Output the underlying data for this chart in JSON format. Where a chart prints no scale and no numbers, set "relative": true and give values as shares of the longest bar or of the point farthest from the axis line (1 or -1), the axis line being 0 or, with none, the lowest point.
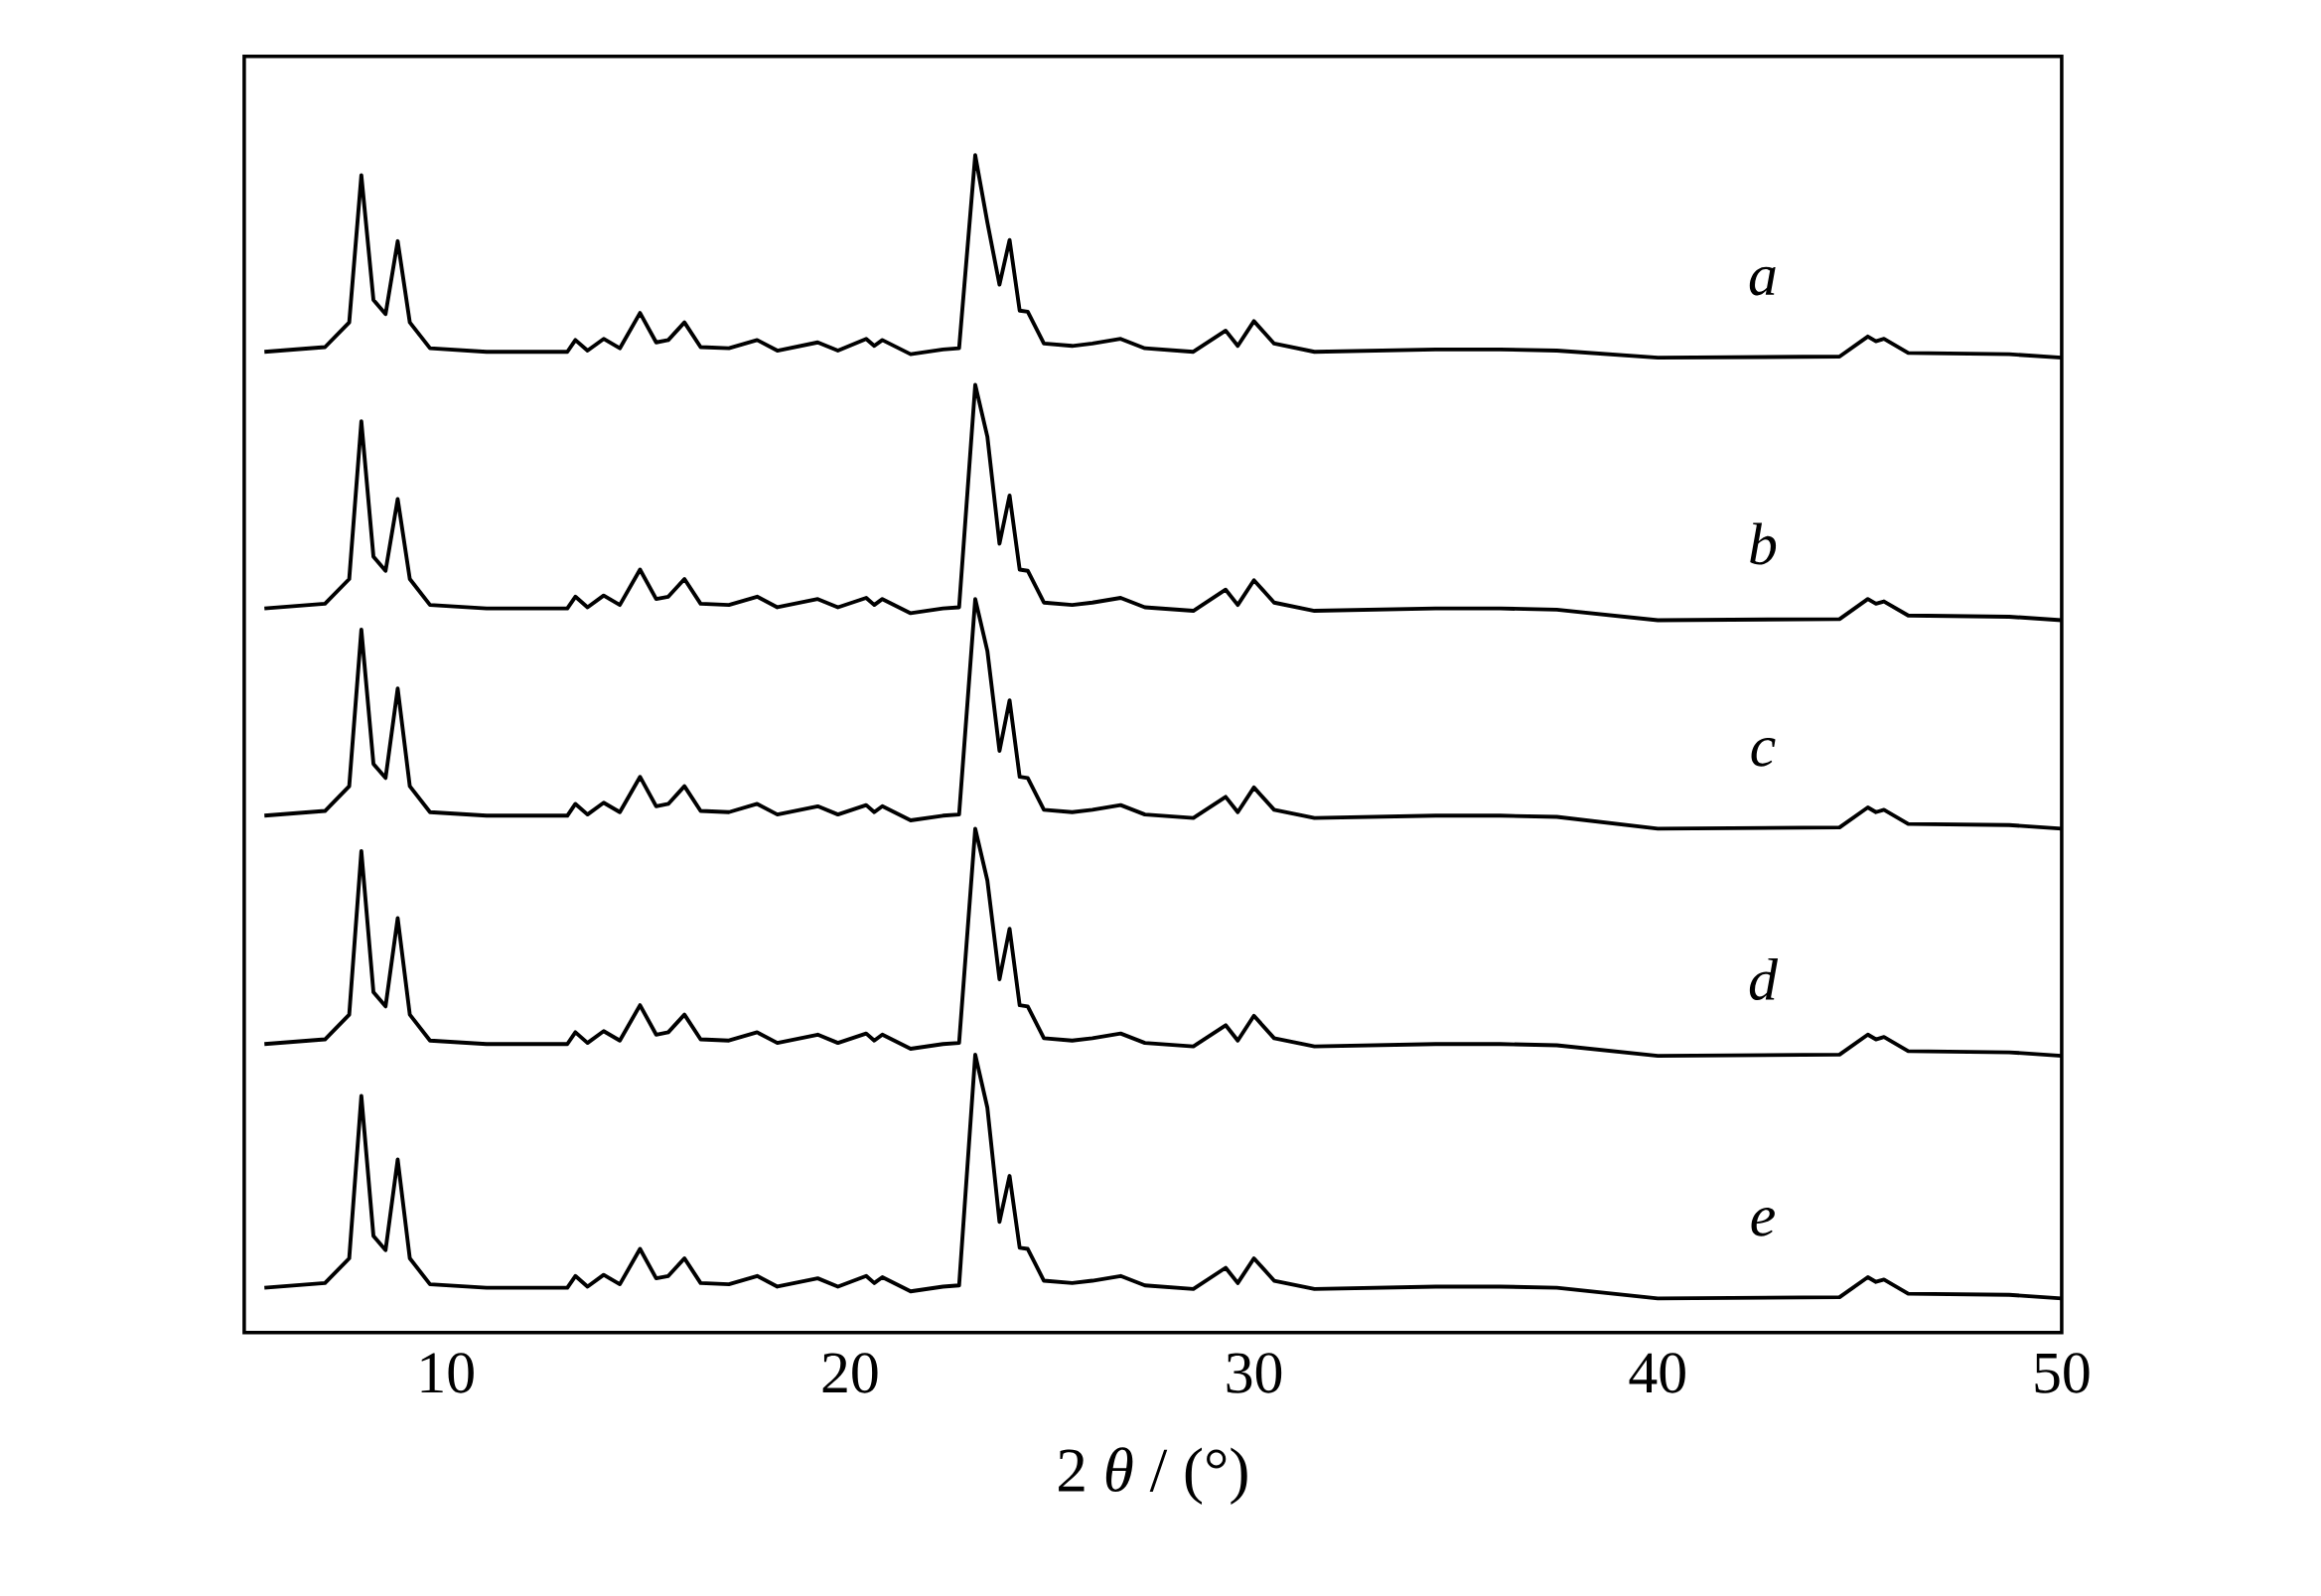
{
  "chart_data": {
    "type": "line",
    "relative": true,
    "xlabel": "2 *θ* / (°)",
    "xlim": [
      5,
      50
    ],
    "xticks": [
      10,
      20,
      30,
      40,
      50
    ],
    "x": [
      5.5,
      7.0,
      7.6,
      7.9,
      8.2,
      8.5,
      8.8,
      9.1,
      9.6,
      11,
      12,
      13.0,
      13.2,
      13.5,
      13.9,
      14.3,
      14.8,
      15.2,
      15.5,
      15.9,
      16.3,
      17.0,
      17.7,
      18.2,
      19.2,
      19.7,
      20.4,
      20.6,
      20.8,
      21.5,
      22.3,
      22.7,
      23.1,
      23.4,
      23.7,
      23.95,
      24.2,
      24.4,
      24.8,
      25.5,
      26.0,
      26.7,
      27.3,
      28.5,
      29.3,
      29.6,
      30.0,
      30.5,
      31.5,
      34.5,
      36.1,
      37.5,
      40,
      44.5,
      45.2,
      45.4,
      45.6,
      46.2,
      48.7,
      50
    ],
    "series": [
      {
        "name": "a",
        "color": "#000000",
        "values": [
          0.833,
          0.837,
          0.858,
          0.983,
          0.877,
          0.865,
          0.927,
          0.858,
          0.836,
          0.833,
          0.833,
          0.833,
          0.843,
          0.834,
          0.844,
          0.836,
          0.866,
          0.841,
          0.843,
          0.858,
          0.837,
          0.836,
          0.843,
          0.834,
          0.841,
          0.834,
          0.844,
          0.838,
          0.843,
          0.831,
          0.835,
          0.836,
          1.0,
          0.943,
          0.89,
          0.928,
          0.868,
          0.867,
          0.84,
          0.838,
          0.84,
          0.844,
          0.836,
          0.833,
          0.851,
          0.838,
          0.859,
          0.84,
          0.833,
          0.835,
          0.835,
          0.834,
          0.828,
          0.829,
          0.846,
          0.842,
          0.844,
          0.832,
          0.831,
          0.828
        ]
      },
      {
        "name": "b",
        "color": "#000000",
        "values": [
          0.615,
          0.619,
          0.64,
          0.774,
          0.659,
          0.647,
          0.708,
          0.64,
          0.618,
          0.615,
          0.615,
          0.615,
          0.625,
          0.616,
          0.626,
          0.618,
          0.648,
          0.623,
          0.625,
          0.64,
          0.619,
          0.618,
          0.625,
          0.616,
          0.623,
          0.616,
          0.624,
          0.618,
          0.623,
          0.611,
          0.615,
          0.616,
          0.805,
          0.761,
          0.67,
          0.711,
          0.648,
          0.647,
          0.62,
          0.618,
          0.62,
          0.624,
          0.616,
          0.613,
          0.631,
          0.618,
          0.639,
          0.62,
          0.613,
          0.615,
          0.615,
          0.614,
          0.605,
          0.606,
          0.623,
          0.619,
          0.621,
          0.609,
          0.608,
          0.605
        ]
      },
      {
        "name": "c",
        "color": "#000000",
        "values": [
          0.439,
          0.443,
          0.464,
          0.597,
          0.483,
          0.471,
          0.547,
          0.464,
          0.442,
          0.439,
          0.439,
          0.439,
          0.449,
          0.44,
          0.45,
          0.442,
          0.472,
          0.447,
          0.449,
          0.464,
          0.443,
          0.442,
          0.449,
          0.44,
          0.447,
          0.44,
          0.448,
          0.442,
          0.447,
          0.435,
          0.439,
          0.44,
          0.623,
          0.579,
          0.494,
          0.537,
          0.472,
          0.471,
          0.444,
          0.442,
          0.444,
          0.448,
          0.44,
          0.437,
          0.455,
          0.442,
          0.463,
          0.444,
          0.437,
          0.439,
          0.439,
          0.438,
          0.428,
          0.429,
          0.446,
          0.442,
          0.444,
          0.432,
          0.431,
          0.428
        ]
      },
      {
        "name": "d",
        "color": "#000000",
        "values": [
          0.245,
          0.249,
          0.27,
          0.409,
          0.289,
          0.277,
          0.352,
          0.27,
          0.248,
          0.245,
          0.245,
          0.245,
          0.255,
          0.246,
          0.256,
          0.248,
          0.278,
          0.253,
          0.255,
          0.27,
          0.249,
          0.248,
          0.255,
          0.246,
          0.253,
          0.246,
          0.254,
          0.248,
          0.253,
          0.241,
          0.245,
          0.246,
          0.428,
          0.384,
          0.3,
          0.343,
          0.278,
          0.277,
          0.25,
          0.248,
          0.25,
          0.254,
          0.246,
          0.243,
          0.261,
          0.248,
          0.269,
          0.25,
          0.243,
          0.245,
          0.245,
          0.244,
          0.235,
          0.236,
          0.253,
          0.249,
          0.251,
          0.239,
          0.238,
          0.235
        ]
      },
      {
        "name": "e",
        "color": "#000000",
        "values": [
          0.038,
          0.042,
          0.063,
          0.201,
          0.082,
          0.07,
          0.147,
          0.063,
          0.041,
          0.038,
          0.038,
          0.038,
          0.048,
          0.039,
          0.049,
          0.041,
          0.071,
          0.046,
          0.048,
          0.063,
          0.042,
          0.041,
          0.048,
          0.039,
          0.046,
          0.039,
          0.048,
          0.042,
          0.047,
          0.035,
          0.039,
          0.04,
          0.236,
          0.191,
          0.094,
          0.133,
          0.072,
          0.071,
          0.044,
          0.042,
          0.044,
          0.048,
          0.04,
          0.037,
          0.055,
          0.042,
          0.063,
          0.044,
          0.037,
          0.039,
          0.039,
          0.038,
          0.029,
          0.03,
          0.047,
          0.043,
          0.045,
          0.033,
          0.032,
          0.029
        ]
      }
    ]
  }
}
